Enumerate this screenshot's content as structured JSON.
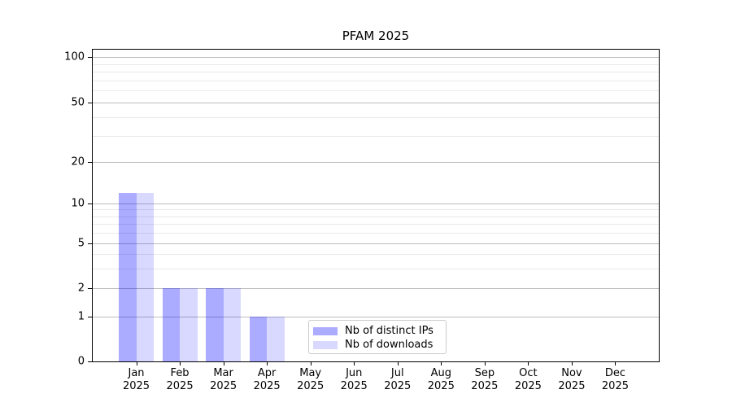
{
  "title": "PFAM 2025",
  "chart_data": {
    "type": "bar",
    "title": "PFAM 2025",
    "categories": [
      "Jan",
      "Feb",
      "Mar",
      "Apr",
      "May",
      "Jun",
      "Jul",
      "Aug",
      "Sep",
      "Oct",
      "Nov",
      "Dec"
    ],
    "category_year": "2025",
    "xlabel": "",
    "ylabel": "",
    "series": [
      {
        "name": "Nb of distinct IPs",
        "color": "#0000ff",
        "alpha": 0.33,
        "values": [
          12,
          2,
          2,
          1,
          0,
          0,
          0,
          0,
          0,
          0,
          0,
          0
        ]
      },
      {
        "name": "Nb of downloads",
        "color": "#0000ff",
        "alpha": 0.15,
        "values": [
          12,
          2,
          2,
          1,
          0,
          0,
          0,
          0,
          0,
          0,
          0,
          0
        ]
      }
    ],
    "y_axis": {
      "scale": "log-with-zero",
      "major_ticks": [
        0,
        1,
        2,
        5,
        10,
        20,
        50,
        100
      ],
      "minor_gridlines": [
        3,
        4,
        6,
        7,
        8,
        9,
        30,
        40,
        60,
        70,
        80,
        90
      ],
      "ylim": [
        0,
        112
      ]
    },
    "grid": "on",
    "legend_position": "lower-center-inside"
  },
  "colors": {
    "bar_distinct_ips_on_white": "#aaaaf5",
    "bar_downloads_on_white": "#dadafa",
    "grid_major": "#bdbdbd",
    "grid_minor": "#e9e9e9",
    "axis": "#000000",
    "legend_border": "#cccccc",
    "background": "#ffffff"
  }
}
